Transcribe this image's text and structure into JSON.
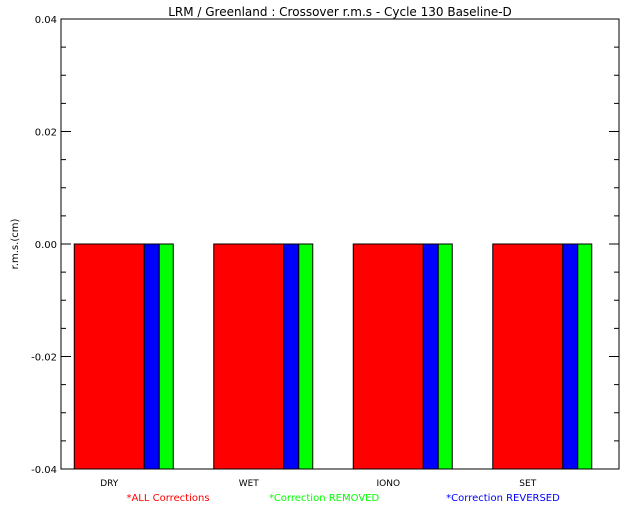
{
  "chart_data": {
    "type": "bar",
    "title": "LRM / Greenland : Crossover r.m.s - Cycle 130 Baseline-D",
    "xlabel": "",
    "ylabel": "r.m.s.(cm)",
    "ylim": [
      -0.04,
      0.04
    ],
    "y_ticks": [
      -0.04,
      -0.02,
      0.0,
      0.02,
      0.04
    ],
    "y_tick_labels": [
      "-0.04",
      "-0.02",
      "0.00",
      "0.02",
      "0.04"
    ],
    "categories": [
      "DRY",
      "WET",
      "IONO",
      "SET"
    ],
    "bar_style": "bars drawn from the y=0.00 line down to the bottom of the axis",
    "series": [
      {
        "name": "ALL Corrections",
        "color": "#ff0000",
        "values": [
          0.0,
          0.0,
          0.0,
          0.0
        ]
      },
      {
        "name": "Correction REVERSED",
        "color": "#0000ff",
        "values": [
          0.0,
          0.0,
          0.0,
          0.0
        ]
      },
      {
        "name": "Correction REMOVED",
        "color": "#00ff00",
        "values": [
          0.0,
          0.0,
          0.0,
          0.0
        ]
      }
    ],
    "legend": [
      {
        "label": "*ALL Corrections",
        "color": "#ff0000"
      },
      {
        "label": "*Correction REMOVED",
        "color": "#00ff00"
      },
      {
        "label": "*Correction REVERSED",
        "color": "#0000ff"
      }
    ],
    "legend_position": "bottom",
    "grid": false
  }
}
